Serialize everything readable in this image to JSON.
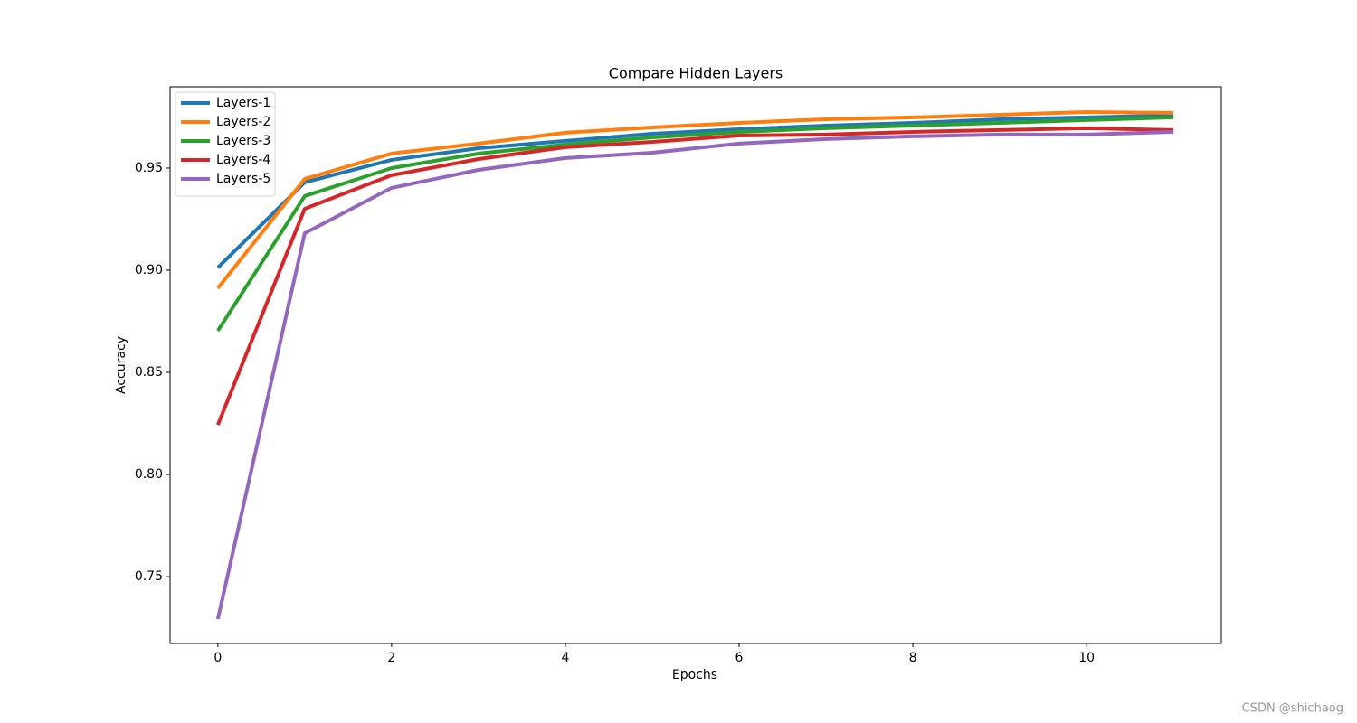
{
  "chart_data": {
    "type": "line",
    "title": "Compare Hidden Layers",
    "x_label": "Epochs",
    "y_label": "Accuracy",
    "x": [
      0,
      1,
      2,
      3,
      4,
      5,
      6,
      7,
      8,
      9,
      10,
      11
    ],
    "series": [
      {
        "name": "Layers-1",
        "color": "#1f77b4",
        "values": [
          0.9013,
          0.943,
          0.954,
          0.9597,
          0.9633,
          0.9668,
          0.969,
          0.9708,
          0.9721,
          0.9739,
          0.9748,
          0.9757
        ]
      },
      {
        "name": "Layers-2",
        "color": "#ff7f0e",
        "values": [
          0.8912,
          0.9447,
          0.9571,
          0.962,
          0.9673,
          0.9699,
          0.9721,
          0.9739,
          0.9748,
          0.9761,
          0.9774,
          0.977
        ]
      },
      {
        "name": "Layers-3",
        "color": "#2ca02c",
        "values": [
          0.8704,
          0.9363,
          0.95,
          0.9571,
          0.9615,
          0.965,
          0.9677,
          0.9695,
          0.9708,
          0.9721,
          0.9735,
          0.9748
        ]
      },
      {
        "name": "Layers-4",
        "color": "#d62728",
        "values": [
          0.8243,
          0.9301,
          0.9465,
          0.9544,
          0.9602,
          0.9628,
          0.9659,
          0.9664,
          0.9677,
          0.9686,
          0.9695,
          0.9686
        ]
      },
      {
        "name": "Layers-5",
        "color": "#9467bd",
        "values": [
          0.7292,
          0.9181,
          0.9403,
          0.9491,
          0.9549,
          0.9575,
          0.962,
          0.9642,
          0.9655,
          0.9664,
          0.9664,
          0.9677
        ]
      }
    ],
    "xlim": [
      -0.55,
      11.55
    ],
    "xticks": [
      0,
      2,
      4,
      6,
      8,
      10
    ],
    "ylim": [
      0.7173,
      0.9898
    ],
    "yticks": [
      {
        "value": 0.75,
        "label": "0.75"
      },
      {
        "value": 0.8,
        "label": "0.80"
      },
      {
        "value": 0.85,
        "label": "0.85"
      },
      {
        "value": 0.9,
        "label": "0.90"
      },
      {
        "value": 0.95,
        "label": "0.95"
      }
    ],
    "legend": "upper left",
    "grid": false
  },
  "watermark": "CSDN @shichaog"
}
